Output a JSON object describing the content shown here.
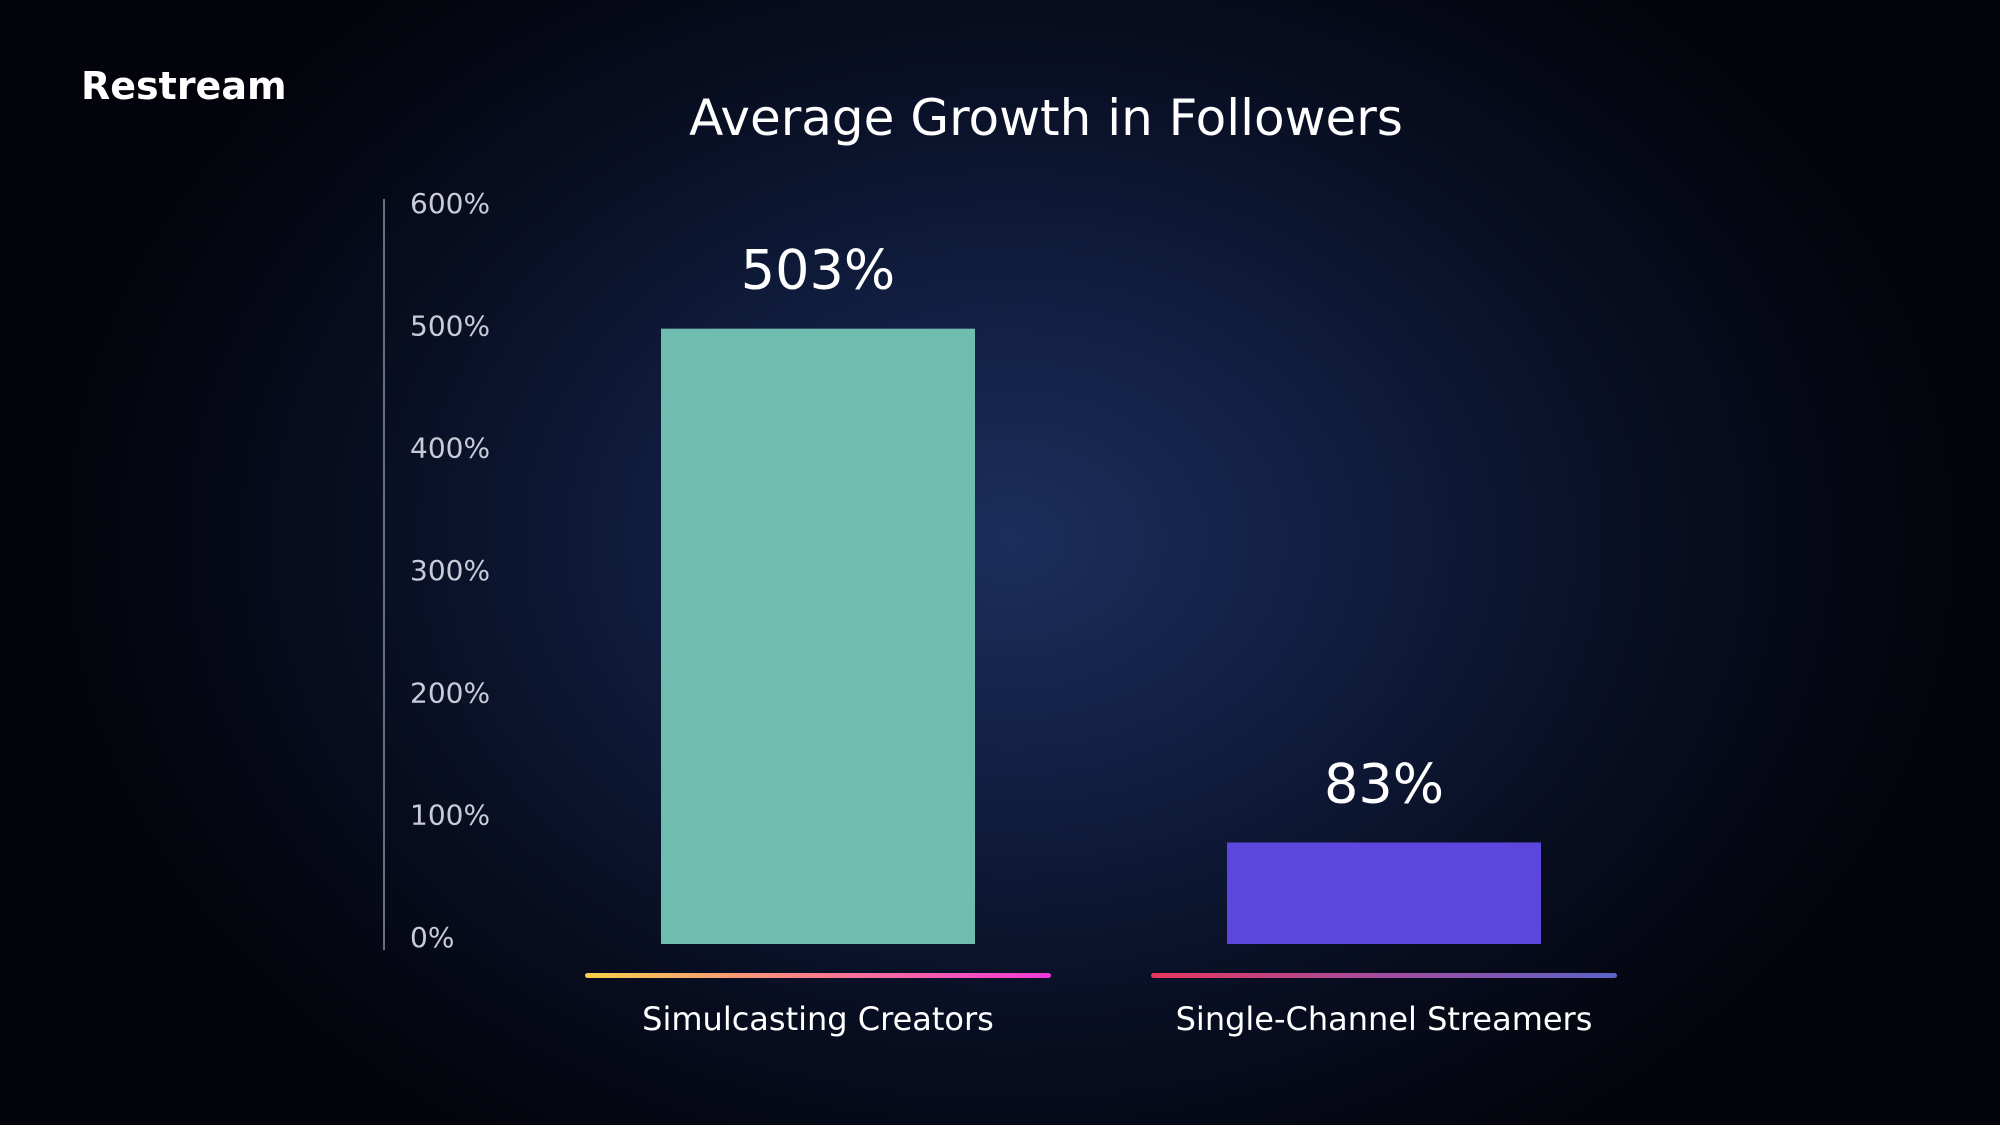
{
  "brand": {
    "name": "Restream"
  },
  "chart_data": {
    "type": "bar",
    "title": "Average Growth in Followers",
    "categories": [
      "Simulcasting Creators",
      "Single-Channel Streamers"
    ],
    "values": [
      503,
      83
    ],
    "data_labels": [
      "503%",
      "83%"
    ],
    "ylim": [
      0,
      600
    ],
    "yticks": [
      0,
      100,
      200,
      300,
      400,
      500,
      600
    ],
    "ytick_labels": [
      "0%",
      "100%",
      "200%",
      "300%",
      "400%",
      "500%",
      "600%"
    ],
    "xlabel": "",
    "ylabel": "",
    "grid": false,
    "bar_colors": [
      "#6fbdae",
      "#5c46de"
    ],
    "underline_gradients": [
      [
        "#f7d14a",
        "#f97b8e",
        "#f03ad8"
      ],
      [
        "#e8365d",
        "#a24c9f",
        "#5b64c8"
      ]
    ],
    "text_color": "#ffffff",
    "tick_color": "#c9ccd8",
    "axis_color": "#8a8fa3"
  }
}
